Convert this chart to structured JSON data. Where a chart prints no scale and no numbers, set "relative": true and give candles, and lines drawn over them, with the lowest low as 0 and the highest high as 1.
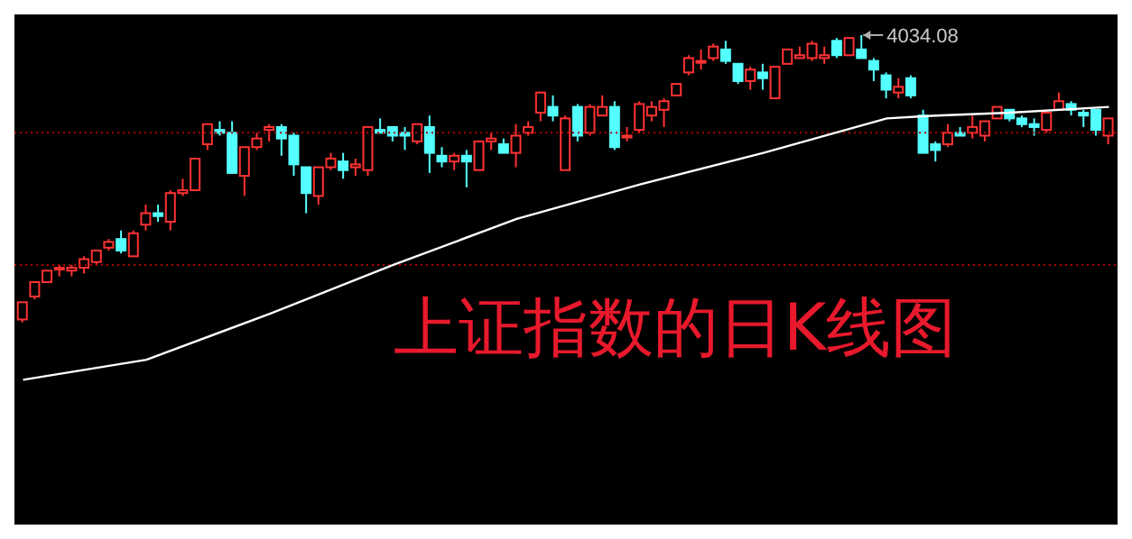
{
  "chart_data": {
    "type": "candlestick",
    "title": "上证指数的日K线图",
    "relative": true,
    "categories": [
      null,
      null,
      null,
      null,
      null,
      null,
      null,
      null,
      null,
      null,
      null,
      null,
      null,
      null,
      null,
      null,
      null,
      null,
      null,
      null,
      null,
      null,
      null,
      null,
      null,
      null,
      null,
      null,
      null,
      null,
      null,
      null,
      null,
      null,
      null,
      null,
      null,
      null,
      null,
      null,
      null,
      null,
      null,
      null,
      null,
      null,
      null,
      null,
      null,
      null,
      null,
      null,
      null,
      null,
      null,
      null,
      null,
      null,
      null,
      null,
      null,
      null,
      null,
      null,
      null,
      null,
      null,
      null,
      null,
      null,
      null,
      null,
      null,
      null,
      null,
      null,
      null,
      null,
      null,
      null,
      null,
      null,
      null,
      null,
      null,
      null,
      null,
      null,
      null
    ],
    "ohlc": [
      [
        0.01,
        0.07,
        0,
        0.07
      ],
      [
        0.09,
        0.14,
        0.08,
        0.14
      ],
      [
        0.14,
        0.18,
        0.14,
        0.18
      ],
      [
        0.19,
        0.2,
        0.16,
        0.19
      ],
      [
        0.18,
        0.2,
        0.16,
        0.19
      ],
      [
        0.19,
        0.23,
        0.17,
        0.22
      ],
      [
        0.21,
        0.25,
        0.2,
        0.25
      ],
      [
        0.26,
        0.29,
        0.25,
        0.28
      ],
      [
        0.29,
        0.32,
        0.24,
        0.25
      ],
      [
        0.23,
        0.32,
        0.23,
        0.31
      ],
      [
        0.34,
        0.41,
        0.32,
        0.38
      ],
      [
        0.38,
        0.41,
        0.35,
        0.37
      ],
      [
        0.35,
        0.46,
        0.32,
        0.45
      ],
      [
        0.45,
        0.5,
        0.44,
        0.46
      ],
      [
        0.46,
        0.57,
        0.46,
        0.57
      ],
      [
        0.62,
        0.69,
        0.6,
        0.69
      ],
      [
        0.67,
        0.7,
        0.65,
        0.66
      ],
      [
        0.66,
        0.7,
        0.52,
        0.52
      ],
      [
        0.51,
        0.61,
        0.44,
        0.61
      ],
      [
        0.61,
        0.66,
        0.6,
        0.64
      ],
      [
        0.67,
        0.69,
        0.63,
        0.68
      ],
      [
        0.68,
        0.69,
        0.58,
        0.64
      ],
      [
        0.65,
        0.66,
        0.51,
        0.55
      ],
      [
        0.54,
        0.54,
        0.38,
        0.45
      ],
      [
        0.44,
        0.54,
        0.41,
        0.54
      ],
      [
        0.54,
        0.59,
        0.53,
        0.57
      ],
      [
        0.56,
        0.59,
        0.5,
        0.53
      ],
      [
        0.54,
        0.57,
        0.51,
        0.55
      ],
      [
        0.53,
        0.68,
        0.51,
        0.68
      ],
      [
        0.67,
        0.71,
        0.66,
        0.66
      ],
      [
        0.68,
        0.68,
        0.63,
        0.65
      ],
      [
        0.66,
        0.68,
        0.6,
        0.65
      ],
      [
        0.63,
        0.69,
        0.62,
        0.69
      ],
      [
        0.68,
        0.72,
        0.52,
        0.59
      ],
      [
        0.58,
        0.61,
        0.54,
        0.56
      ],
      [
        0.56,
        0.59,
        0.53,
        0.58
      ],
      [
        0.58,
        0.6,
        0.47,
        0.56
      ],
      [
        0.53,
        0.63,
        0.53,
        0.63
      ],
      [
        0.63,
        0.66,
        0.6,
        0.64
      ],
      [
        0.62,
        0.64,
        0.59,
        0.59
      ],
      [
        0.59,
        0.69,
        0.54,
        0.65
      ],
      [
        0.66,
        0.7,
        0.65,
        0.68
      ],
      [
        0.73,
        0.8,
        0.7,
        0.8
      ],
      [
        0.75,
        0.79,
        0.7,
        0.72
      ],
      [
        0.53,
        0.72,
        0.53,
        0.71
      ],
      [
        0.75,
        0.76,
        0.63,
        0.65
      ],
      [
        0.66,
        0.76,
        0.65,
        0.75
      ],
      [
        0.72,
        0.79,
        0.72,
        0.75
      ],
      [
        0.75,
        0.77,
        0.6,
        0.61
      ],
      [
        0.65,
        0.68,
        0.63,
        0.65
      ],
      [
        0.67,
        0.77,
        0.66,
        0.76
      ],
      [
        0.72,
        0.77,
        0.7,
        0.75
      ],
      [
        0.74,
        0.78,
        0.68,
        0.77
      ],
      [
        0.79,
        0.83,
        0.79,
        0.83
      ],
      [
        0.87,
        0.93,
        0.86,
        0.92
      ],
      [
        0.91,
        0.95,
        0.88,
        0.91
      ],
      [
        0.92,
        0.97,
        0.91,
        0.96
      ],
      [
        0.95,
        0.98,
        0.9,
        0.91
      ],
      [
        0.9,
        0.9,
        0.83,
        0.84
      ],
      [
        0.84,
        0.89,
        0.81,
        0.88
      ],
      [
        0.87,
        0.9,
        0.81,
        0.85
      ],
      [
        0.78,
        0.89,
        0.78,
        0.89
      ],
      [
        0.9,
        0.95,
        0.9,
        0.95
      ],
      [
        0.92,
        0.96,
        0.92,
        0.93
      ],
      [
        0.92,
        0.98,
        0.91,
        0.97
      ],
      [
        0.92,
        0.96,
        0.9,
        0.93
      ],
      [
        0.98,
        0.99,
        0.92,
        0.93
      ],
      [
        0.93,
        0.99,
        0.93,
        0.99
      ],
      [
        0.95,
        1,
        0.92,
        0.92
      ],
      [
        0.91,
        0.92,
        0.84,
        0.88
      ],
      [
        0.86,
        0.87,
        0.78,
        0.81
      ],
      [
        0.8,
        0.85,
        0.78,
        0.82
      ],
      [
        0.85,
        0.86,
        0.78,
        0.79
      ],
      [
        0.72,
        0.74,
        0.59,
        0.59
      ],
      [
        0.62,
        0.63,
        0.56,
        0.6
      ],
      [
        0.62,
        0.69,
        0.61,
        0.66
      ],
      [
        0.66,
        0.68,
        0.65,
        0.65
      ],
      [
        0.66,
        0.72,
        0.64,
        0.68
      ],
      [
        0.65,
        0.7,
        0.63,
        0.7
      ],
      [
        0.71,
        0.75,
        0.71,
        0.75
      ],
      [
        0.74,
        0.74,
        0.7,
        0.71
      ],
      [
        0.71,
        0.72,
        0.68,
        0.69
      ],
      [
        0.69,
        0.71,
        0.65,
        0.68
      ],
      [
        0.67,
        0.74,
        0.66,
        0.73
      ],
      [
        0.74,
        0.8,
        0.74,
        0.77
      ],
      [
        0.76,
        0.77,
        0.72,
        0.74
      ],
      [
        0.73,
        0.74,
        0.68,
        0.72
      ],
      [
        0.74,
        0.74,
        0.65,
        0.67
      ],
      [
        0.65,
        0.71,
        0.62,
        0.71
      ]
    ],
    "series": [
      {
        "type": "line",
        "color": "#ffffff",
        "values": [
          -0.2,
          null,
          null,
          null,
          null,
          null,
          null,
          null,
          null,
          null,
          -0.13,
          null,
          null,
          null,
          null,
          null,
          null,
          null,
          null,
          null,
          0.03,
          null,
          null,
          null,
          null,
          null,
          null,
          null,
          null,
          null,
          0.2,
          null,
          null,
          null,
          null,
          null,
          null,
          null,
          null,
          null,
          0.36,
          null,
          null,
          null,
          null,
          null,
          null,
          null,
          null,
          null,
          0.48,
          null,
          null,
          null,
          null,
          null,
          null,
          null,
          null,
          null,
          0.59,
          null,
          null,
          null,
          null,
          null,
          null,
          null,
          null,
          null,
          0.71,
          null,
          null,
          null,
          0.72,
          null,
          null,
          null,
          null,
          null,
          0.73,
          null,
          null,
          null,
          null,
          null,
          null,
          null,
          0.75
        ]
      }
    ],
    "ref_lines": [
      {
        "axis": "y",
        "value": 0.66,
        "color": "#b00000",
        "line_style": "dotted"
      },
      {
        "axis": "y",
        "value": 0.2,
        "color": "#b00000",
        "line_style": "dotted"
      }
    ],
    "annotations": [
      "4034.08"
    ]
  }
}
